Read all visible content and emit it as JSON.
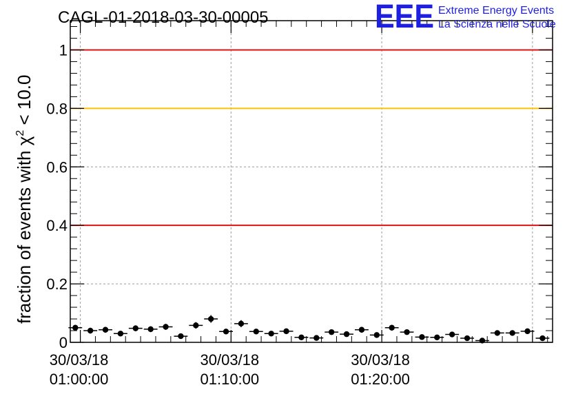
{
  "chart_data": {
    "type": "scatter",
    "title": "CAGL-01-2018-03-30-00005",
    "ylabel_prefix": "fraction of events with ",
    "ylabel_symbol": "χ",
    "ylabel_sup": "2",
    "ylabel_suffix": " < 10.0",
    "xlabel": "",
    "ylim": [
      0,
      1.1
    ],
    "y_ticks": [
      "0",
      "0.2",
      "0.4",
      "0.6",
      "0.8",
      "1"
    ],
    "x_tick_labels": [
      {
        "date": "30/03/18",
        "time": "01:00:00"
      },
      {
        "date": "30/03/18",
        "time": "01:10:00"
      },
      {
        "date": "30/03/18",
        "time": "01:20:00"
      }
    ],
    "grid": true,
    "reference_lines": [
      {
        "y": 1.0,
        "color": "#e01010"
      },
      {
        "y": 0.8,
        "color": "#ffc000"
      },
      {
        "y": 0.4,
        "color": "#e01010"
      }
    ],
    "series": [
      {
        "x": [
          "00:59:40",
          "01:00:40",
          "01:01:40",
          "01:02:40",
          "01:03:40",
          "01:04:40",
          "01:05:40",
          "01:06:40",
          "01:07:40",
          "01:08:40",
          "01:09:40",
          "01:10:40",
          "01:11:40",
          "01:12:40",
          "01:13:40",
          "01:14:40",
          "01:15:40",
          "01:16:40",
          "01:17:40",
          "01:18:40",
          "01:19:40",
          "01:20:40",
          "01:21:40",
          "01:22:40",
          "01:23:40",
          "01:24:40",
          "01:25:40",
          "01:26:40",
          "01:27:40",
          "01:28:40",
          "01:29:40",
          "01:30:40"
        ],
        "values": [
          0.05,
          0.04,
          0.043,
          0.03,
          0.048,
          0.045,
          0.053,
          0.021,
          0.058,
          0.08,
          0.037,
          0.064,
          0.037,
          0.03,
          0.038,
          0.017,
          0.015,
          0.035,
          0.028,
          0.043,
          0.025,
          0.05,
          0.035,
          0.018,
          0.017,
          0.027,
          0.014,
          0.006,
          0.032,
          0.032,
          0.038,
          0.014
        ],
        "errors": [
          0.01,
          0.01,
          0.01,
          0.008,
          0.01,
          0.01,
          0.01,
          0.007,
          0.011,
          0.013,
          0.009,
          0.012,
          0.009,
          0.008,
          0.009,
          0.006,
          0.006,
          0.009,
          0.008,
          0.01,
          0.007,
          0.01,
          0.009,
          0.006,
          0.006,
          0.008,
          0.006,
          0.004,
          0.008,
          0.008,
          0.009,
          0.006
        ],
        "color": "#000000"
      }
    ]
  },
  "logo": {
    "mark": "EEE",
    "line1": "Extreme Energy Events",
    "line2": "La Scienza nelle Scuole",
    "color": "#1f1fe0"
  }
}
